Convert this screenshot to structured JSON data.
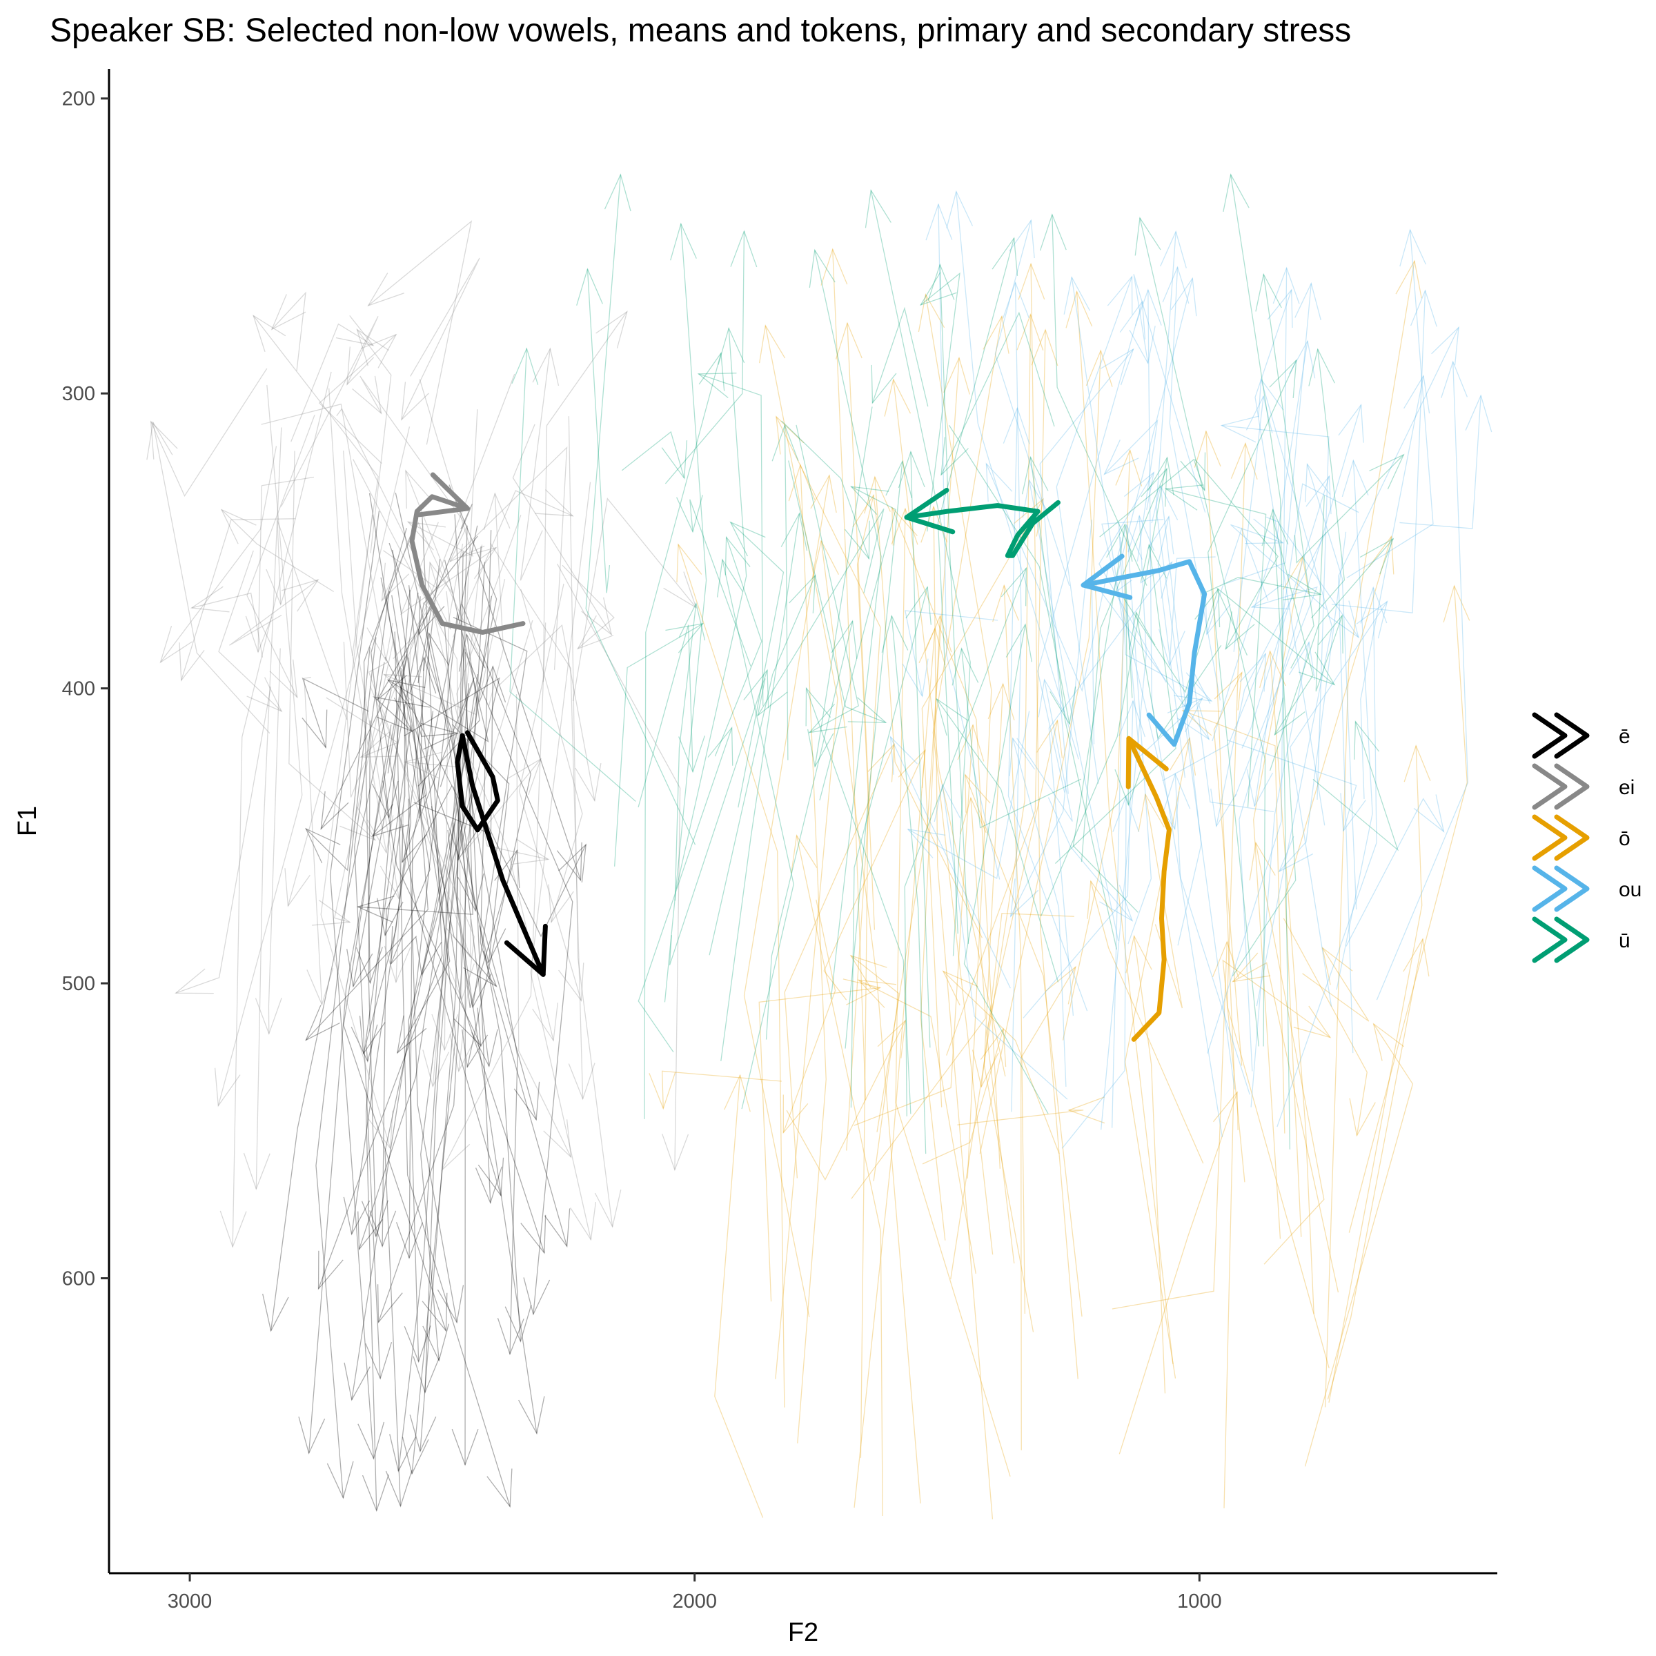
{
  "chart_data": {
    "type": "line",
    "title": "Speaker SB: Selected non-low vowels, means and tokens, primary and secondary stress",
    "xlabel": "F2",
    "ylabel": "F1",
    "x_reversed": true,
    "y_reversed": true,
    "xlim": [
      3160,
      410
    ],
    "ylim": [
      190,
      700
    ],
    "x_ticks": [
      3000,
      2000,
      1000
    ],
    "y_ticks": [
      200,
      300,
      400,
      500,
      600
    ],
    "grid": false,
    "legend_placement": "right",
    "legend": [
      {
        "label": "ē",
        "color": "#000000"
      },
      {
        "label": "ei",
        "color": "#888888"
      },
      {
        "label": "ō",
        "color": "#E69F00"
      },
      {
        "label": "ou",
        "color": "#56B4E9"
      },
      {
        "label": "ū",
        "color": "#009E73"
      }
    ],
    "series": [
      {
        "name": "ē",
        "color": "#000000",
        "points": [
          [
            2450,
            415
          ],
          [
            2400,
            430
          ],
          [
            2390,
            438
          ],
          [
            2430,
            448
          ],
          [
            2460,
            440
          ],
          [
            2470,
            425
          ],
          [
            2460,
            416
          ],
          [
            2440,
            433
          ],
          [
            2380,
            465
          ],
          [
            2300,
            497
          ]
        ]
      },
      {
        "name": "ei",
        "color": "#888888",
        "points": [
          [
            2340,
            378
          ],
          [
            2420,
            381
          ],
          [
            2500,
            378
          ],
          [
            2540,
            365
          ],
          [
            2560,
            350
          ],
          [
            2550,
            340
          ],
          [
            2520,
            335
          ],
          [
            2450,
            339
          ]
        ]
      },
      {
        "name": "ō",
        "color": "#E69F00",
        "points": [
          [
            1130,
            519
          ],
          [
            1080,
            510
          ],
          [
            1070,
            492
          ],
          [
            1075,
            478
          ],
          [
            1070,
            462
          ],
          [
            1060,
            448
          ],
          [
            1085,
            437
          ],
          [
            1140,
            417
          ]
        ]
      },
      {
        "name": "ou",
        "color": "#56B4E9",
        "points": [
          [
            1100,
            409
          ],
          [
            1050,
            419
          ],
          [
            1020,
            405
          ],
          [
            1010,
            388
          ],
          [
            990,
            368
          ],
          [
            1020,
            357
          ],
          [
            1080,
            360
          ],
          [
            1230,
            365
          ]
        ]
      },
      {
        "name": "ū",
        "color": "#009E73",
        "points": [
          [
            1280,
            337
          ],
          [
            1330,
            344
          ],
          [
            1370,
            355
          ],
          [
            1380,
            355
          ],
          [
            1360,
            348
          ],
          [
            1320,
            340
          ],
          [
            1400,
            338
          ],
          [
            1500,
            340
          ],
          [
            1580,
            342
          ]
        ]
      }
    ],
    "token_summary": [
      {
        "name": "ē",
        "color": "#000000",
        "f2": [
          2400,
          2650
        ],
        "start_f1": [
          330,
          450
        ],
        "end_f1": [
          380,
          680
        ]
      },
      {
        "name": "ei",
        "color": "#888888",
        "f2": [
          2200,
          2900
        ],
        "start_f1": [
          290,
          420
        ],
        "end_f1": [
          270,
          590
        ]
      },
      {
        "name": "ō",
        "color": "#E69F00",
        "f2": [
          700,
          1900
        ],
        "start_f1": [
          470,
          690
        ],
        "end_f1": [
          250,
          560
        ]
      },
      {
        "name": "ou",
        "color": "#56B4E9",
        "f2": [
          600,
          1400
        ],
        "start_f1": [
          340,
          560
        ],
        "end_f1": [
          230,
          480
        ]
      },
      {
        "name": "ū",
        "color": "#009E73",
        "f2": [
          750,
          2200
        ],
        "start_f1": [
          300,
          560
        ],
        "end_f1": [
          220,
          440
        ]
      }
    ]
  }
}
